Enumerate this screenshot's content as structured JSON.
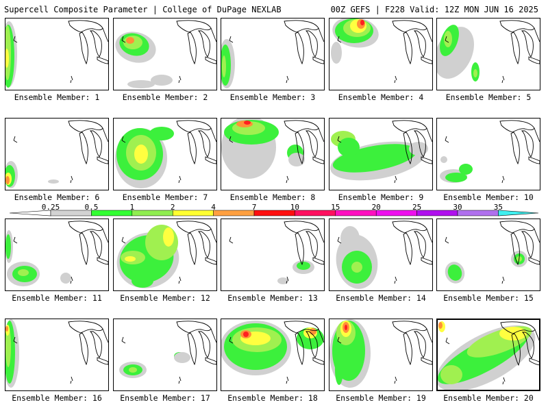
{
  "header": {
    "left": "Supercell Composite Parameter | College of DuPage NEXLAB",
    "right": "00Z GEFS | F228 Valid: 12Z MON JUN 16 2025"
  },
  "member_label_prefix": "Ensemble Member:",
  "members": [
    1,
    2,
    3,
    4,
    5,
    6,
    7,
    8,
    9,
    10,
    11,
    12,
    13,
    14,
    15,
    16,
    17,
    18,
    19,
    20
  ],
  "colorbar": {
    "levels": [
      "0.25",
      "0.5",
      "1",
      "2",
      "4",
      "7",
      "10",
      "15",
      "20",
      "25",
      "30",
      "35"
    ],
    "colors": [
      "#d3d3d3",
      "#32ff32",
      "#90ee50",
      "#ffff30",
      "#ffa040",
      "#ff1010",
      "#ff1060",
      "#ff10c0",
      "#ee10ee",
      "#b010ee",
      "#b070ee",
      "#40f0f0"
    ]
  },
  "field_colors": {
    "gray": "#d0d0d0",
    "green": "#3cf03c",
    "lightgreen": "#a0f050",
    "yellow": "#ffff40",
    "orange": "#ff9038",
    "red": "#ff2020"
  }
}
